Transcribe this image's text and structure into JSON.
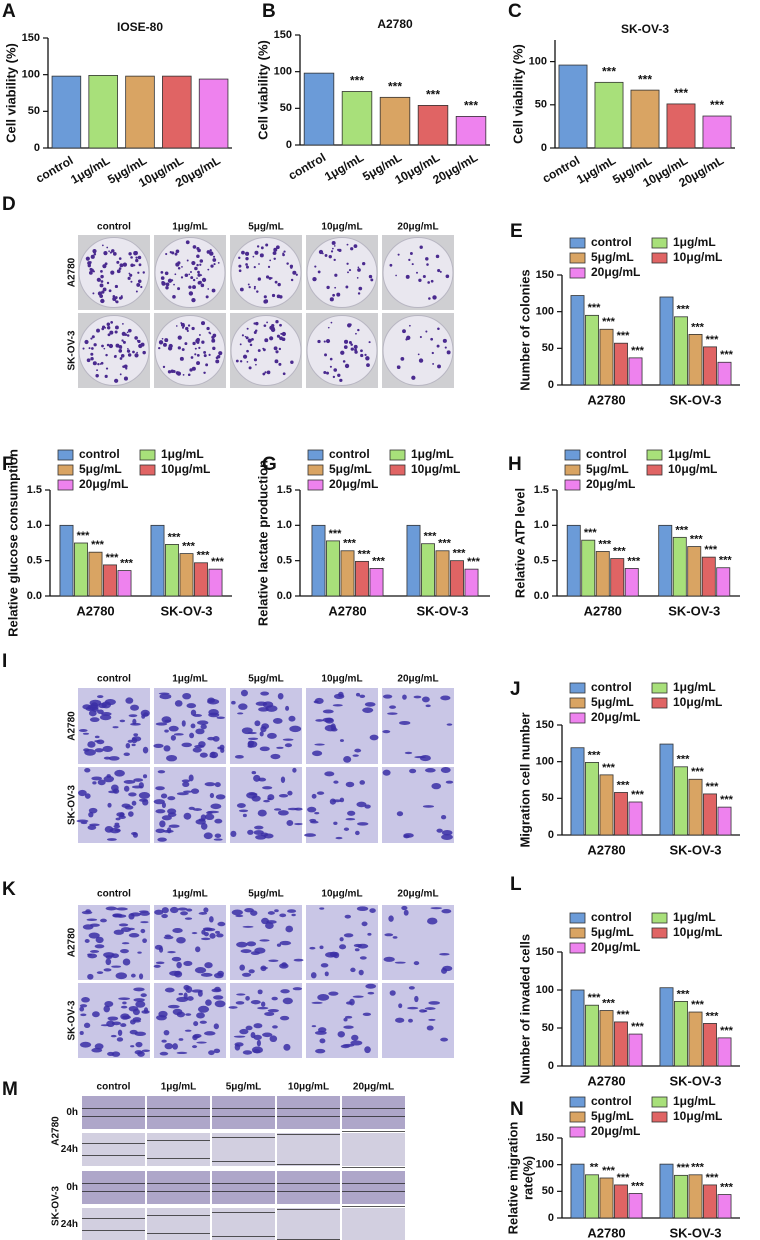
{
  "chart_data": [
    {
      "type": "bar",
      "panel": "A",
      "title": "IOSE-80",
      "ylabel": "Cell viability (%)",
      "categories": [
        "control",
        "1μg/mL",
        "5μg/mL",
        "10μg/mL",
        "20μg/mL"
      ],
      "values": [
        98,
        99,
        98,
        98,
        94
      ],
      "annotations": [
        null,
        null,
        null,
        null,
        null
      ],
      "colors": [
        "#6b9bd8",
        "#a8e07a",
        "#d9a463",
        "#e06464",
        "#ee82ee"
      ],
      "ylim": [
        0,
        150
      ],
      "yticks": [
        0,
        50,
        100,
        150
      ]
    },
    {
      "type": "bar",
      "panel": "B",
      "title": "A2780",
      "ylabel": "Cell viability (%)",
      "categories": [
        "control",
        "1μg/mL",
        "5μg/mL",
        "10μg/mL",
        "20μg/mL"
      ],
      "values": [
        98,
        73,
        65,
        54,
        39
      ],
      "annotations": [
        null,
        "***",
        "***",
        "***",
        "***"
      ],
      "colors": [
        "#6b9bd8",
        "#a8e07a",
        "#d9a463",
        "#e06464",
        "#ee82ee"
      ],
      "ylim": [
        0,
        150
      ],
      "yticks": [
        0,
        50,
        100,
        150
      ]
    },
    {
      "type": "bar",
      "panel": "C",
      "title": "SK-OV-3",
      "ylabel": "Cell viability (%)",
      "categories": [
        "control",
        "1μg/mL",
        "5μg/mL",
        "10μg/mL",
        "20μg/mL"
      ],
      "values": [
        96,
        76,
        67,
        51,
        37
      ],
      "annotations": [
        null,
        "***",
        "***",
        "***",
        "***"
      ],
      "colors": [
        "#6b9bd8",
        "#a8e07a",
        "#d9a463",
        "#e06464",
        "#ee82ee"
      ],
      "ylim": [
        0,
        125
      ],
      "yticks": [
        0,
        50,
        100
      ]
    },
    {
      "type": "grouped_bar",
      "panel": "E",
      "ylabel": "Number of colonies",
      "categories": [
        "A2780",
        "SK-OV-3"
      ],
      "ylim": [
        0,
        150
      ],
      "yticks": [
        0,
        50,
        100,
        150
      ],
      "series": [
        {
          "name": "control",
          "color": "#6b9bd8",
          "values": [
            122,
            120
          ]
        },
        {
          "name": "1μg/mL",
          "color": "#a8e07a",
          "values": [
            95,
            93
          ],
          "annotations": [
            "***",
            "***"
          ]
        },
        {
          "name": "5μg/mL",
          "color": "#d9a463",
          "values": [
            76,
            69
          ],
          "annotations": [
            "***",
            "***"
          ]
        },
        {
          "name": "10μg/mL",
          "color": "#e06464",
          "values": [
            57,
            52
          ],
          "annotations": [
            "***",
            "***"
          ]
        },
        {
          "name": "20μg/mL",
          "color": "#ee82ee",
          "values": [
            37,
            31
          ],
          "annotations": [
            "***",
            "***"
          ]
        }
      ]
    },
    {
      "type": "grouped_bar",
      "panel": "F",
      "ylabel": "Relative glucose consumption",
      "categories": [
        "A2780",
        "SK-OV-3"
      ],
      "ylim": [
        0,
        1.5
      ],
      "yticks": [
        {
          "value": 0,
          "label": "0.0"
        },
        0.5,
        {
          "value": 1,
          "label": "1.0"
        },
        1.5
      ],
      "series": [
        {
          "name": "control",
          "color": "#6b9bd8",
          "values": [
            1.0,
            1.0
          ]
        },
        {
          "name": "1μg/mL",
          "color": "#a8e07a",
          "values": [
            0.75,
            0.73
          ],
          "annotations": [
            "***",
            "***"
          ]
        },
        {
          "name": "5μg/mL",
          "color": "#d9a463",
          "values": [
            0.62,
            0.6
          ],
          "annotations": [
            "***",
            "***"
          ]
        },
        {
          "name": "10μg/mL",
          "color": "#e06464",
          "values": [
            0.44,
            0.47
          ],
          "annotations": [
            "***",
            "***"
          ]
        },
        {
          "name": "20μg/mL",
          "color": "#ee82ee",
          "values": [
            0.36,
            0.38
          ],
          "annotations": [
            "***",
            "***"
          ]
        }
      ]
    },
    {
      "type": "grouped_bar",
      "panel": "G",
      "ylabel": "Relative lactate production",
      "categories": [
        "A2780",
        "SK-OV-3"
      ],
      "ylim": [
        0,
        1.5
      ],
      "yticks": [
        {
          "value": 0,
          "label": "0.0"
        },
        0.5,
        {
          "value": 1,
          "label": "1.0"
        },
        1.5
      ],
      "series": [
        {
          "name": "control",
          "color": "#6b9bd8",
          "values": [
            1.0,
            1.0
          ]
        },
        {
          "name": "1μg/mL",
          "color": "#a8e07a",
          "values": [
            0.78,
            0.74
          ],
          "annotations": [
            "***",
            "***"
          ]
        },
        {
          "name": "5μg/mL",
          "color": "#d9a463",
          "values": [
            0.64,
            0.64
          ],
          "annotations": [
            "***",
            "***"
          ]
        },
        {
          "name": "10μg/mL",
          "color": "#e06464",
          "values": [
            0.49,
            0.5
          ],
          "annotations": [
            "***",
            "***"
          ]
        },
        {
          "name": "20μg/mL",
          "color": "#ee82ee",
          "values": [
            0.39,
            0.38
          ],
          "annotations": [
            "***",
            "***"
          ]
        }
      ]
    },
    {
      "type": "grouped_bar",
      "panel": "H",
      "ylabel": "Relative ATP level",
      "categories": [
        "A2780",
        "SK-OV-3"
      ],
      "ylim": [
        0,
        1.5
      ],
      "yticks": [
        {
          "value": 0,
          "label": "0.0"
        },
        0.5,
        {
          "value": 1,
          "label": "1.0"
        },
        1.5
      ],
      "series": [
        {
          "name": "control",
          "color": "#6b9bd8",
          "values": [
            1.0,
            1.0
          ]
        },
        {
          "name": "1μg/mL",
          "color": "#a8e07a",
          "values": [
            0.79,
            0.83
          ],
          "annotations": [
            "***",
            "***"
          ]
        },
        {
          "name": "5μg/mL",
          "color": "#d9a463",
          "values": [
            0.63,
            0.7
          ],
          "annotations": [
            "***",
            "***"
          ]
        },
        {
          "name": "10μg/mL",
          "color": "#e06464",
          "values": [
            0.53,
            0.55
          ],
          "annotations": [
            "***",
            "***"
          ]
        },
        {
          "name": "20μg/mL",
          "color": "#ee82ee",
          "values": [
            0.39,
            0.4
          ],
          "annotations": [
            "***",
            "***"
          ]
        }
      ]
    },
    {
      "type": "grouped_bar",
      "panel": "J",
      "ylabel": "Migration cell number",
      "categories": [
        "A2780",
        "SK-OV-3"
      ],
      "ylim": [
        0,
        150
      ],
      "yticks": [
        0,
        50,
        100,
        150
      ],
      "series": [
        {
          "name": "control",
          "color": "#6b9bd8",
          "values": [
            119,
            124
          ]
        },
        {
          "name": "1μg/mL",
          "color": "#a8e07a",
          "values": [
            99,
            93
          ],
          "annotations": [
            "***",
            "***"
          ]
        },
        {
          "name": "5μg/mL",
          "color": "#d9a463",
          "values": [
            82,
            76
          ],
          "annotations": [
            "***",
            "***"
          ]
        },
        {
          "name": "10μg/mL",
          "color": "#e06464",
          "values": [
            58,
            56
          ],
          "annotations": [
            "***",
            "***"
          ]
        },
        {
          "name": "20μg/mL",
          "color": "#ee82ee",
          "values": [
            45,
            38
          ],
          "annotations": [
            "***",
            "***"
          ]
        }
      ]
    },
    {
      "type": "grouped_bar",
      "panel": "L",
      "ylabel": "Number of invaded cells",
      "categories": [
        "A2780",
        "SK-OV-3"
      ],
      "ylim": [
        0,
        150
      ],
      "yticks": [
        0,
        50,
        100,
        150
      ],
      "series": [
        {
          "name": "control",
          "color": "#6b9bd8",
          "values": [
            100,
            103
          ]
        },
        {
          "name": "1μg/mL",
          "color": "#a8e07a",
          "values": [
            80,
            85
          ],
          "annotations": [
            "***",
            "***"
          ]
        },
        {
          "name": "5μg/mL",
          "color": "#d9a463",
          "values": [
            73,
            71
          ],
          "annotations": [
            "***",
            "***"
          ]
        },
        {
          "name": "10μg/mL",
          "color": "#e06464",
          "values": [
            58,
            56
          ],
          "annotations": [
            "***",
            "***"
          ]
        },
        {
          "name": "20μg/mL",
          "color": "#ee82ee",
          "values": [
            42,
            37
          ],
          "annotations": [
            "***",
            "***"
          ]
        }
      ]
    },
    {
      "type": "grouped_bar",
      "panel": "N",
      "ylabel": [
        "Relative migration",
        "rate(%)"
      ],
      "categories": [
        "A2780",
        "SK-OV-3"
      ],
      "ylim": [
        0,
        150
      ],
      "yticks": [
        0,
        50,
        100,
        150
      ],
      "series": [
        {
          "name": "control",
          "color": "#6b9bd8",
          "values": [
            101,
            101
          ]
        },
        {
          "name": "1μg/mL",
          "color": "#a8e07a",
          "values": [
            81,
            80
          ],
          "annotations": [
            "**",
            "***"
          ]
        },
        {
          "name": "5μg/mL",
          "color": "#d9a463",
          "values": [
            75,
            81
          ],
          "annotations": [
            "***",
            "***"
          ]
        },
        {
          "name": "10μg/mL",
          "color": "#e06464",
          "values": [
            62,
            62
          ],
          "annotations": [
            "***",
            "***"
          ]
        },
        {
          "name": "20μg/mL",
          "color": "#ee82ee",
          "values": [
            46,
            44
          ],
          "annotations": [
            "***",
            "***"
          ]
        }
      ]
    }
  ],
  "image_panels": [
    {
      "panel": "D",
      "kind": "colony",
      "columns": [
        "control",
        "1μg/mL",
        "5μg/mL",
        "10μg/mL",
        "20μg/mL"
      ],
      "rows": [
        "A2780",
        "SK-OV-3"
      ]
    },
    {
      "panel": "I",
      "kind": "transwell",
      "columns": [
        "control",
        "1μg/mL",
        "5μg/mL",
        "10μg/mL",
        "20μg/mL"
      ],
      "rows": [
        "A2780",
        "SK-OV-3"
      ]
    },
    {
      "panel": "K",
      "kind": "transwell",
      "columns": [
        "control",
        "1μg/mL",
        "5μg/mL",
        "10μg/mL",
        "20μg/mL"
      ],
      "rows": [
        "A2780",
        "SK-OV-3"
      ]
    },
    {
      "panel": "M",
      "kind": "wound",
      "columns": [
        "control",
        "1μg/mL",
        "5μg/mL",
        "10μg/mL",
        "20μg/mL"
      ],
      "rows": [
        "A2780",
        "SK-OV-3"
      ],
      "times": [
        "0h",
        "24h"
      ]
    }
  ]
}
